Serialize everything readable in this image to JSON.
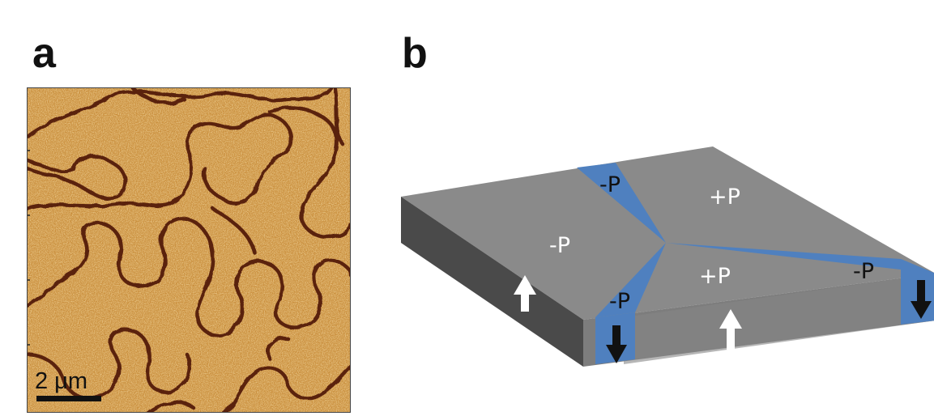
{
  "panels": {
    "a": {
      "letter": "a",
      "scalebar_label": "2 μm"
    },
    "b": {
      "letter": "b",
      "domains": {
        "top_left_center": "-P",
        "top_strip": "-P",
        "top_right": "+P",
        "front_center": "+P",
        "left_strip": "-P",
        "right_strip": "-P"
      }
    }
  },
  "colors": {
    "afm_base": "#c98e3c",
    "afm_wall": "#5a220c",
    "block_top": "#8a8a8a",
    "block_side_dark": "#4a4a4a",
    "block_side_mid": "#7d7d7d",
    "domain_wall_blue": "#4f80bf",
    "arrow_up": "#ffffff",
    "arrow_down": "#111111"
  },
  "icons": {
    "polarization_up": "white-up-arrow-icon",
    "polarization_down": "black-down-arrow-icon"
  }
}
